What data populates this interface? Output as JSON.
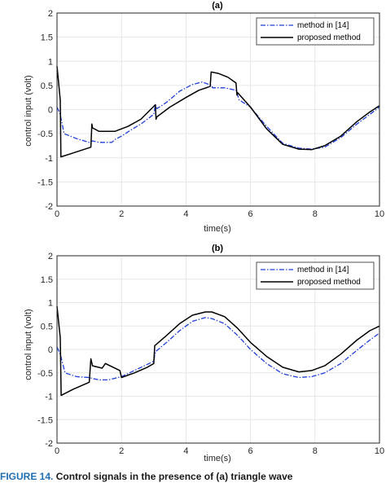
{
  "figure": {
    "caption_label": "FIGURE 14.",
    "caption_text": "Control signals in the presence of (a) triangle wave"
  },
  "colors": {
    "series1": "#1f3fd8",
    "series2": "#000000",
    "grid": "#e6e6e6",
    "axis": "#262626"
  },
  "chart_data": [
    {
      "type": "line",
      "title": "(a)",
      "xlabel": "time(s)",
      "ylabel": "control input (volt)",
      "xlim": [
        0,
        10
      ],
      "ylim": [
        -2,
        2
      ],
      "xticks": [
        "0",
        "2",
        "4",
        "6",
        "8",
        "10"
      ],
      "yticks": [
        "-2",
        "-1.5",
        "-1",
        "-0.5",
        "0",
        "0.5",
        "1",
        "1.5",
        "2"
      ],
      "grid": true,
      "legend": "top-right",
      "series": [
        {
          "name": "method in [14]",
          "style": "dash-dot",
          "x": [
            0,
            0.1,
            0.22,
            0.6,
            1.0,
            1.1,
            1.3,
            1.7,
            1.8,
            2.0,
            2.3,
            2.6,
            3.0,
            3.05,
            3.1,
            3.4,
            3.8,
            4.2,
            4.5,
            4.8,
            4.82,
            5.2,
            5.55,
            5.65,
            6.0,
            6.5,
            7.0,
            7.5,
            7.9,
            8.3,
            8.8,
            9.3,
            9.7,
            10.0
          ],
          "y": [
            0.05,
            -0.1,
            -0.5,
            -0.6,
            -0.68,
            -0.65,
            -0.68,
            -0.68,
            -0.62,
            -0.55,
            -0.42,
            -0.3,
            -0.1,
            0.1,
            0.02,
            0.15,
            0.38,
            0.52,
            0.57,
            0.5,
            0.45,
            0.45,
            0.4,
            0.2,
            0.05,
            -0.35,
            -0.7,
            -0.8,
            -0.82,
            -0.78,
            -0.58,
            -0.3,
            -0.1,
            0.05
          ]
        },
        {
          "name": "proposed method",
          "style": "solid",
          "x": [
            0,
            0.1,
            0.12,
            0.5,
            1.05,
            1.08,
            1.1,
            1.3,
            1.8,
            2.2,
            2.6,
            3.05,
            3.07,
            3.1,
            3.5,
            4.0,
            4.4,
            4.75,
            4.78,
            5.0,
            5.3,
            5.55,
            5.58,
            5.6,
            6.0,
            6.5,
            7.0,
            7.5,
            7.9,
            8.3,
            8.8,
            9.3,
            9.7,
            10.0
          ],
          "y": [
            0.9,
            0.2,
            -0.98,
            -0.9,
            -0.78,
            -0.3,
            -0.38,
            -0.45,
            -0.45,
            -0.35,
            -0.2,
            0.1,
            -0.2,
            -0.15,
            0.05,
            0.25,
            0.4,
            0.48,
            0.78,
            0.75,
            0.67,
            0.55,
            0.3,
            0.35,
            0.05,
            -0.4,
            -0.72,
            -0.82,
            -0.83,
            -0.75,
            -0.55,
            -0.25,
            -0.05,
            0.08
          ]
        }
      ]
    },
    {
      "type": "line",
      "title": "(b)",
      "xlabel": "time(s)",
      "ylabel": "control input (volt)",
      "xlim": [
        0,
        10
      ],
      "ylim": [
        -2,
        2
      ],
      "xticks": [
        "0",
        "2",
        "4",
        "6",
        "8",
        "10"
      ],
      "yticks": [
        "-2",
        "-1.5",
        "-1",
        "-0.5",
        "0",
        "0.5",
        "1",
        "1.5",
        "2"
      ],
      "grid": true,
      "legend": "top-right",
      "series": [
        {
          "name": "method in [14]",
          "style": "dash-dot",
          "x": [
            0,
            0.1,
            0.25,
            0.6,
            1.0,
            1.1,
            1.3,
            1.6,
            2.0,
            2.4,
            2.8,
            3.0,
            3.05,
            3.4,
            3.8,
            4.2,
            4.6,
            4.8,
            5.2,
            5.6,
            6.0,
            6.5,
            7.0,
            7.5,
            7.9,
            8.3,
            8.8,
            9.3,
            9.7,
            10.0
          ],
          "y": [
            0.05,
            -0.1,
            -0.5,
            -0.58,
            -0.6,
            -0.62,
            -0.65,
            -0.65,
            -0.58,
            -0.45,
            -0.32,
            -0.25,
            -0.05,
            0.15,
            0.4,
            0.6,
            0.68,
            0.66,
            0.55,
            0.3,
            0.0,
            -0.3,
            -0.52,
            -0.6,
            -0.58,
            -0.5,
            -0.3,
            -0.02,
            0.2,
            0.35
          ]
        },
        {
          "name": "proposed method",
          "style": "solid",
          "x": [
            0,
            0.1,
            0.13,
            0.5,
            1.0,
            1.05,
            1.1,
            1.4,
            1.5,
            1.95,
            2.0,
            2.4,
            2.8,
            3.0,
            3.03,
            3.4,
            3.8,
            4.2,
            4.6,
            4.8,
            5.2,
            5.6,
            6.0,
            6.5,
            7.0,
            7.5,
            7.9,
            8.3,
            8.8,
            9.3,
            9.7,
            10.0
          ],
          "y": [
            0.92,
            0.25,
            -0.98,
            -0.85,
            -0.7,
            -0.2,
            -0.35,
            -0.4,
            -0.3,
            -0.45,
            -0.6,
            -0.5,
            -0.38,
            -0.3,
            0.08,
            0.3,
            0.55,
            0.73,
            0.8,
            0.8,
            0.7,
            0.45,
            0.15,
            -0.15,
            -0.38,
            -0.48,
            -0.45,
            -0.35,
            -0.1,
            0.2,
            0.4,
            0.5
          ]
        }
      ]
    }
  ]
}
